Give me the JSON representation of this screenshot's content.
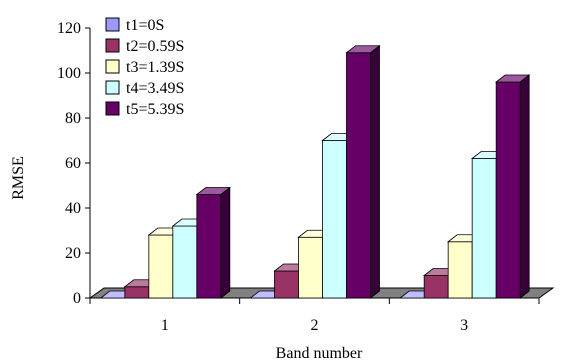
{
  "chart_data": {
    "type": "bar",
    "categories": [
      "1",
      "2",
      "3"
    ],
    "series": [
      {
        "name": "t1=0S",
        "values": [
          0,
          0,
          0
        ],
        "color": "#9999ff"
      },
      {
        "name": "t2=0.59S",
        "values": [
          5,
          12,
          10
        ],
        "color": "#993366"
      },
      {
        "name": "t3=1.39S",
        "values": [
          28,
          27,
          25
        ],
        "color": "#ffffcc"
      },
      {
        "name": "t4=3.49S",
        "values": [
          32,
          70,
          62
        ],
        "color": "#ccffff"
      },
      {
        "name": "t5=5.39S",
        "values": [
          46,
          109,
          96
        ],
        "color": "#660066"
      }
    ],
    "xlabel": "Band number",
    "ylabel": "RMSE",
    "ylim": [
      0,
      120
    ],
    "yticks": [
      "0",
      "20",
      "40",
      "60",
      "80",
      "100",
      "120"
    ],
    "legend_position": "top-left",
    "grid": false,
    "style": "3d-clustered-bar"
  }
}
